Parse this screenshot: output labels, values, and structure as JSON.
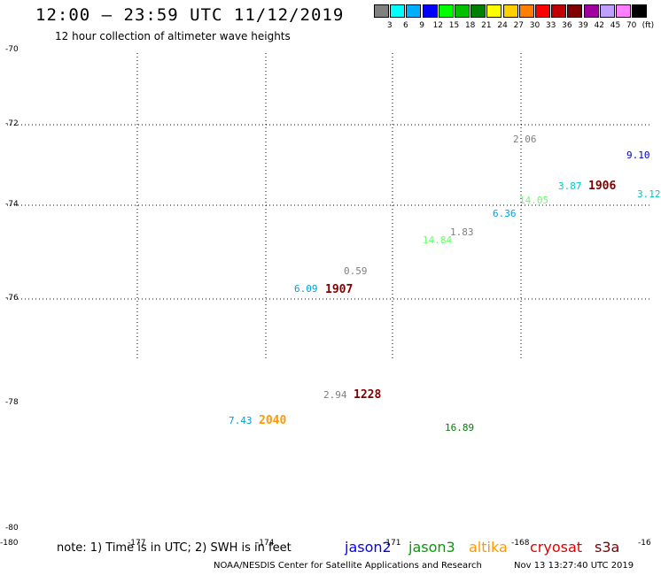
{
  "header": {
    "title": "12:00 – 23:59 UTC 11/12/2019",
    "subtitle": "12 hour collection of altimeter wave heights"
  },
  "scale": {
    "colors": [
      "#808080",
      "#00ffff",
      "#00b0ff",
      "#0000ff",
      "#00ff00",
      "#00c000",
      "#008000",
      "#ffff00",
      "#ffd000",
      "#ff8000",
      "#ff0000",
      "#c00000",
      "#800000",
      "#a000a0",
      "#c0a0ff",
      "#ff80ff",
      "#000000"
    ],
    "labels": [
      "3",
      "6",
      "9",
      "12",
      "15",
      "18",
      "21",
      "24",
      "27",
      "30",
      "33",
      "36",
      "39",
      "42",
      "45",
      "70"
    ],
    "unit": "(ft)"
  },
  "axes": {
    "lat_labels": [
      "-70",
      "-72",
      "-74",
      "-76",
      "-78",
      "-80"
    ],
    "lon_labels": [
      "-180",
      "-177",
      "-174",
      "-171",
      "-168",
      "-16"
    ]
  },
  "observations": [
    {
      "text": "2.06",
      "color": "#808080"
    },
    {
      "text": "9.10",
      "color": "#0000c0"
    },
    {
      "text": "3.87",
      "color": "#00c8c8"
    },
    {
      "text": "1906",
      "color": "#800000",
      "time": true
    },
    {
      "text": "3.12",
      "color": "#00c8c8"
    },
    {
      "text": "14.05",
      "color": "#66ff66"
    },
    {
      "text": "6.36",
      "color": "#00a0e0"
    },
    {
      "text": "1.83",
      "color": "#808080"
    },
    {
      "text": "14.84",
      "color": "#66ff66"
    },
    {
      "text": "0.59",
      "color": "#808080"
    },
    {
      "text": "6.09",
      "color": "#00a0e0"
    },
    {
      "text": "1907",
      "color": "#800000",
      "time": true
    },
    {
      "text": "2.94",
      "color": "#808080"
    },
    {
      "text": "1228",
      "color": "#800000",
      "time": true
    },
    {
      "text": "7.43",
      "color": "#00a0e0"
    },
    {
      "text": "2040",
      "color": "#ff9900",
      "time": true
    },
    {
      "text": "16.89",
      "color": "#008000"
    }
  ],
  "footer": {
    "note": "note: 1) Time is in UTC; 2) SWH is in feet",
    "legend": [
      {
        "name": "jason2",
        "color": "#0000ff"
      },
      {
        "name": "jason3",
        "color": "#00a000"
      },
      {
        "name": "altika",
        "color": "#ff9900"
      },
      {
        "name": "cryosat",
        "color": "#e00000"
      },
      {
        "name": "s3a",
        "color": "#800000"
      }
    ],
    "credit": "NOAA/NESDIS Center for Satellite Applications and Research",
    "timestamp": "Nov 13 13:27:40 UTC 2019"
  }
}
